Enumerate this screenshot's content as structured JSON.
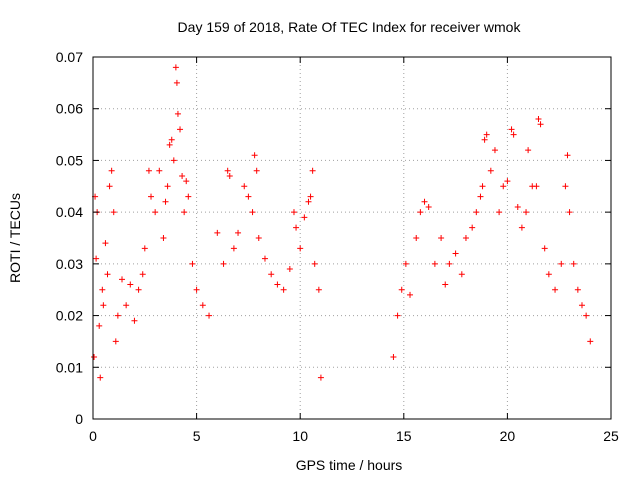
{
  "chart_data": {
    "type": "scatter",
    "title": "Day 159 of 2018, Rate Of TEC Index for receiver wmok",
    "xlabel": "GPS time / hours",
    "ylabel": "ROTI / TECUs",
    "xlim": [
      0,
      25
    ],
    "ylim": [
      0,
      0.07
    ],
    "x_ticks": [
      "0",
      "5",
      "10",
      "15",
      "20",
      "25"
    ],
    "y_ticks": [
      "0",
      "0.01",
      "0.02",
      "0.03",
      "0.04",
      "0.05",
      "0.06",
      "0.07"
    ],
    "grid": true,
    "marker": "+",
    "color": "#ff0000",
    "series": [
      {
        "points": [
          [
            0.05,
            0.012
          ],
          [
            0.1,
            0.043
          ],
          [
            0.15,
            0.031
          ],
          [
            0.2,
            0.04
          ],
          [
            0.3,
            0.018
          ],
          [
            0.35,
            0.008
          ],
          [
            0.45,
            0.025
          ],
          [
            0.5,
            0.022
          ],
          [
            0.6,
            0.034
          ],
          [
            0.7,
            0.028
          ],
          [
            0.8,
            0.045
          ],
          [
            0.9,
            0.048
          ],
          [
            1.0,
            0.04
          ],
          [
            1.1,
            0.015
          ],
          [
            1.2,
            0.02
          ],
          [
            1.4,
            0.027
          ],
          [
            1.6,
            0.022
          ],
          [
            1.8,
            0.026
          ],
          [
            2.0,
            0.019
          ],
          [
            2.2,
            0.025
          ],
          [
            2.4,
            0.028
          ],
          [
            2.5,
            0.033
          ],
          [
            2.7,
            0.048
          ],
          [
            2.8,
            0.043
          ],
          [
            3.0,
            0.04
          ],
          [
            3.2,
            0.048
          ],
          [
            3.4,
            0.035
          ],
          [
            3.5,
            0.042
          ],
          [
            3.6,
            0.045
          ],
          [
            3.7,
            0.053
          ],
          [
            3.8,
            0.054
          ],
          [
            3.9,
            0.05
          ],
          [
            4.0,
            0.068
          ],
          [
            4.05,
            0.065
          ],
          [
            4.1,
            0.059
          ],
          [
            4.2,
            0.056
          ],
          [
            4.3,
            0.047
          ],
          [
            4.4,
            0.04
          ],
          [
            4.5,
            0.046
          ],
          [
            4.6,
            0.043
          ],
          [
            4.8,
            0.03
          ],
          [
            5.0,
            0.025
          ],
          [
            5.3,
            0.022
          ],
          [
            5.6,
            0.02
          ],
          [
            6.0,
            0.036
          ],
          [
            6.3,
            0.03
          ],
          [
            6.5,
            0.048
          ],
          [
            6.6,
            0.047
          ],
          [
            6.8,
            0.033
          ],
          [
            7.0,
            0.036
          ],
          [
            7.3,
            0.045
          ],
          [
            7.5,
            0.043
          ],
          [
            7.7,
            0.04
          ],
          [
            7.8,
            0.051
          ],
          [
            7.9,
            0.048
          ],
          [
            8.0,
            0.035
          ],
          [
            8.3,
            0.031
          ],
          [
            8.6,
            0.028
          ],
          [
            8.9,
            0.026
          ],
          [
            9.2,
            0.025
          ],
          [
            9.5,
            0.029
          ],
          [
            9.7,
            0.04
          ],
          [
            9.8,
            0.037
          ],
          [
            10.0,
            0.033
          ],
          [
            10.2,
            0.039
          ],
          [
            10.4,
            0.042
          ],
          [
            10.5,
            0.043
          ],
          [
            10.6,
            0.048
          ],
          [
            10.7,
            0.03
          ],
          [
            10.9,
            0.025
          ],
          [
            11.0,
            0.008
          ],
          [
            14.5,
            0.012
          ],
          [
            14.7,
            0.02
          ],
          [
            14.9,
            0.025
          ],
          [
            15.1,
            0.03
          ],
          [
            15.3,
            0.024
          ],
          [
            15.6,
            0.035
          ],
          [
            15.8,
            0.04
          ],
          [
            16.0,
            0.042
          ],
          [
            16.2,
            0.041
          ],
          [
            16.5,
            0.03
          ],
          [
            16.8,
            0.035
          ],
          [
            17.0,
            0.026
          ],
          [
            17.2,
            0.03
          ],
          [
            17.5,
            0.032
          ],
          [
            17.8,
            0.028
          ],
          [
            18.0,
            0.035
          ],
          [
            18.3,
            0.037
          ],
          [
            18.5,
            0.04
          ],
          [
            18.7,
            0.043
          ],
          [
            18.8,
            0.045
          ],
          [
            18.9,
            0.054
          ],
          [
            19.0,
            0.055
          ],
          [
            19.2,
            0.048
          ],
          [
            19.4,
            0.052
          ],
          [
            19.6,
            0.04
          ],
          [
            19.8,
            0.045
          ],
          [
            20.0,
            0.046
          ],
          [
            20.2,
            0.056
          ],
          [
            20.3,
            0.055
          ],
          [
            20.5,
            0.041
          ],
          [
            20.7,
            0.037
          ],
          [
            20.9,
            0.04
          ],
          [
            21.0,
            0.052
          ],
          [
            21.2,
            0.045
          ],
          [
            21.4,
            0.045
          ],
          [
            21.5,
            0.058
          ],
          [
            21.6,
            0.057
          ],
          [
            21.8,
            0.033
          ],
          [
            22.0,
            0.028
          ],
          [
            22.3,
            0.025
          ],
          [
            22.6,
            0.03
          ],
          [
            22.8,
            0.045
          ],
          [
            22.9,
            0.051
          ],
          [
            23.0,
            0.04
          ],
          [
            23.2,
            0.03
          ],
          [
            23.4,
            0.025
          ],
          [
            23.6,
            0.022
          ],
          [
            23.8,
            0.02
          ],
          [
            24.0,
            0.015
          ]
        ]
      }
    ]
  }
}
